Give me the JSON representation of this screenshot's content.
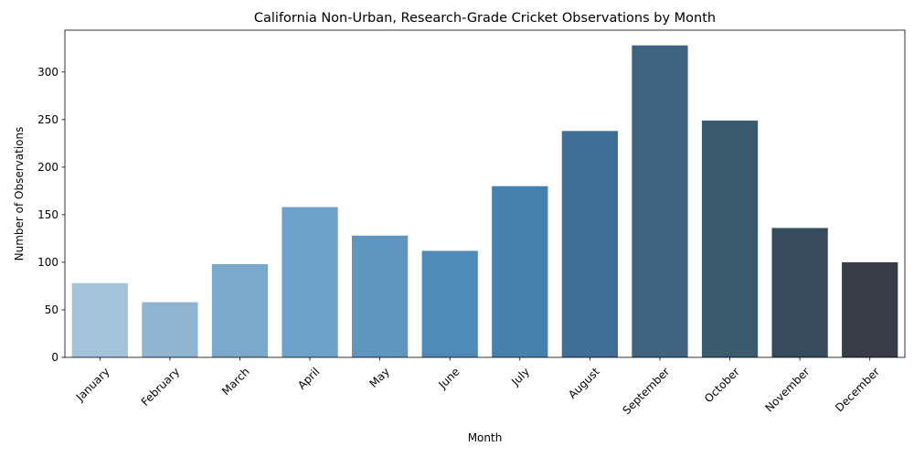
{
  "chart_data": {
    "type": "bar",
    "title": "California Non-Urban, Research-Grade Cricket Observations by Month",
    "xlabel": "Month",
    "ylabel": "Number of Observations",
    "categories": [
      "January",
      "February",
      "March",
      "April",
      "May",
      "June",
      "July",
      "August",
      "September",
      "October",
      "November",
      "December"
    ],
    "values": [
      78,
      58,
      98,
      158,
      128,
      112,
      180,
      238,
      328,
      249,
      136,
      100
    ],
    "ylim": [
      0,
      344
    ],
    "yticks": [
      0,
      50,
      100,
      150,
      200,
      250,
      300
    ],
    "grid": false,
    "colors": [
      "#a2c3d9",
      "#8fb5d2",
      "#7aa9cb",
      "#6ca2c9",
      "#5e96bf",
      "#4f8bb8",
      "#4680ad",
      "#3f6f96",
      "#3f6482",
      "#3a5a6e",
      "#374b5c",
      "#373c47"
    ]
  }
}
